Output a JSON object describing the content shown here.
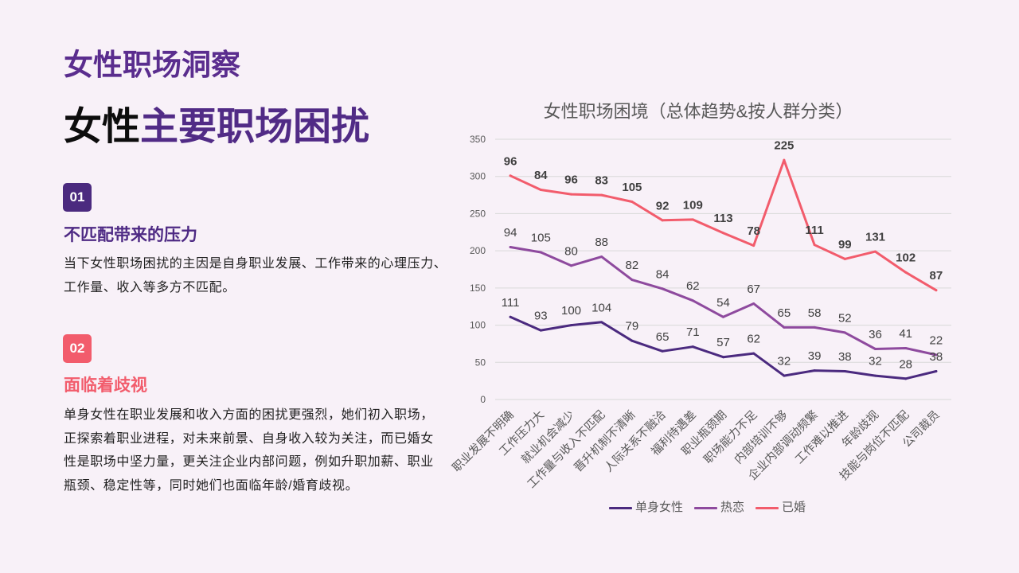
{
  "theme": {
    "background": "#f8f1f8",
    "purple": "#512b86",
    "eyebrow_color": "#5a2d8e"
  },
  "header": {
    "eyebrow": "女性职场洞察",
    "title_lead": "女性",
    "title_accent": "主要职场困扰"
  },
  "sections": [
    {
      "badge": "01",
      "heading": "不匹配带来的压力",
      "accent": "#4e2a84",
      "badge_color": "#4b2a7f",
      "body_lines": [
        "当下女性职场困扰的主因是自身职业发展、工作带来的心理压力、",
        "工作量、收入等多方不匹配。"
      ]
    },
    {
      "badge": "02",
      "heading": "面临着歧视",
      "accent": "#f25c6c",
      "badge_color": "#f25c6c",
      "body_lines": [
        "单身女性在职业发展和收入方面的困扰更强烈，她们初入职场，",
        "正探索着职业进程，对未来前景、自身收入较为关注，而已婚女",
        "性是职场中坚力量，更关注企业内部问题，例如升职加薪、职业",
        "瓶颈、稳定性等，同时她们也面临年龄/婚育歧视。"
      ]
    }
  ],
  "chart_data": {
    "type": "line",
    "stacked": true,
    "title": "女性职场困境（总体趋势&按人群分类）",
    "ylim": [
      0,
      350
    ],
    "yticks": [
      0,
      50,
      100,
      150,
      200,
      250,
      300,
      350
    ],
    "grid": true,
    "legend": "bottom",
    "data_labels": true,
    "categories": [
      "职业发展不明确",
      "工作压力大",
      "就业机会减少",
      "工作量与收入不匹配",
      "晋升机制不清晰",
      "人际关系不融洽",
      "福利待遇差",
      "职业瓶颈期",
      "职场能力不足",
      "内部培训不够",
      "企业内部调动频繁",
      "工作难以推进",
      "年龄歧视",
      "技能与岗位不匹配",
      "公司裁员"
    ],
    "series": [
      {
        "name": "单身女性",
        "color": "#4b2a7f",
        "values": [
          111,
          93,
          100,
          104,
          79,
          65,
          71,
          57,
          62,
          32,
          39,
          38,
          32,
          28,
          38
        ]
      },
      {
        "name": "热恋",
        "color": "#8e4a9e",
        "values": [
          94,
          105,
          80,
          88,
          82,
          84,
          62,
          54,
          67,
          65,
          58,
          52,
          36,
          41,
          22
        ]
      },
      {
        "name": "已婚",
        "color": "#f25c6c",
        "values": [
          96,
          84,
          96,
          83,
          105,
          92,
          109,
          113,
          78,
          225,
          111,
          99,
          131,
          102,
          87
        ]
      }
    ]
  }
}
